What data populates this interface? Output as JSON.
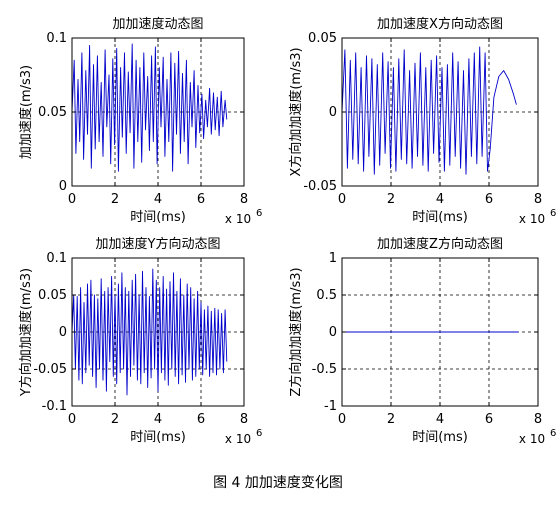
{
  "figure_caption": "图 4  加加速度变化图",
  "chart_data": [
    {
      "type": "line",
      "title": "加加速度动态图",
      "xlabel": "时间(ms)",
      "ylabel": "加加速度(m/s3)",
      "x_multiplier_label": {
        "base": "x 10",
        "exp": "6"
      },
      "xlim": [
        0,
        8
      ],
      "ylim": [
        0,
        0.1
      ],
      "xticks": [
        0,
        2,
        4,
        6,
        8
      ],
      "xtick_labels": [
        "0",
        "2",
        "4",
        "6",
        "8"
      ],
      "yticks": [
        0,
        0.05,
        0.1
      ],
      "ytick_labels": [
        "0",
        "0.05",
        "0.1"
      ],
      "grid": true,
      "color": "#0000cc",
      "series": [
        {
          "x": [
            0.0,
            0.1,
            0.18,
            0.28,
            0.36,
            0.46,
            0.54,
            0.64,
            0.72,
            0.82,
            0.9,
            1.0,
            1.08,
            1.18,
            1.26,
            1.36,
            1.44,
            1.54,
            1.62,
            1.72,
            1.8,
            1.9,
            1.98,
            2.08,
            2.16,
            2.26,
            2.34,
            2.44,
            2.52,
            2.62,
            2.7,
            2.8,
            2.88,
            2.98,
            3.06,
            3.16,
            3.24,
            3.34,
            3.42,
            3.52,
            3.6,
            3.7,
            3.78,
            3.88,
            3.96,
            4.06,
            4.14,
            4.24,
            4.32,
            4.42,
            4.5,
            4.6,
            4.68,
            4.78,
            4.86,
            4.96,
            5.04,
            5.14,
            5.22,
            5.32,
            5.4,
            5.5,
            5.58,
            5.68,
            5.76,
            5.86,
            5.94,
            6.04,
            6.12,
            6.22,
            6.3,
            6.4,
            6.48,
            6.58,
            6.66,
            6.76,
            6.84,
            6.94,
            7.02,
            7.12,
            7.2
          ],
          "y": [
            0.05,
            0.085,
            0.022,
            0.072,
            0.03,
            0.09,
            0.018,
            0.078,
            0.035,
            0.095,
            0.012,
            0.082,
            0.025,
            0.088,
            0.03,
            0.07,
            0.02,
            0.092,
            0.04,
            0.075,
            0.015,
            0.086,
            0.028,
            0.093,
            0.01,
            0.08,
            0.033,
            0.09,
            0.022,
            0.077,
            0.036,
            0.096,
            0.012,
            0.085,
            0.03,
            0.08,
            0.016,
            0.09,
            0.038,
            0.074,
            0.024,
            0.088,
            0.03,
            0.094,
            0.015,
            0.08,
            0.04,
            0.087,
            0.02,
            0.072,
            0.03,
            0.09,
            0.01,
            0.083,
            0.035,
            0.091,
            0.022,
            0.076,
            0.03,
            0.085,
            0.015,
            0.07,
            0.04,
            0.078,
            0.026,
            0.068,
            0.036,
            0.062,
            0.032,
            0.058,
            0.04,
            0.066,
            0.035,
            0.063,
            0.038,
            0.06,
            0.034,
            0.064,
            0.04,
            0.058,
            0.045
          ]
        }
      ]
    },
    {
      "type": "line",
      "title": "加加速度X方向动态图",
      "xlabel": "时间(ms)",
      "ylabel": "X方向加加速度(m/s3)",
      "x_multiplier_label": {
        "base": "x 10",
        "exp": "6"
      },
      "xlim": [
        0,
        8
      ],
      "ylim": [
        -0.05,
        0.05
      ],
      "xticks": [
        0,
        2,
        4,
        6,
        8
      ],
      "xtick_labels": [
        "0",
        "2",
        "4",
        "6",
        "8"
      ],
      "yticks": [
        -0.05,
        0,
        0.05
      ],
      "ytick_labels": [
        "-0.05",
        "0",
        "0.05"
      ],
      "grid": true,
      "color": "#0000cc",
      "series": [
        {
          "x": [
            0.0,
            0.12,
            0.22,
            0.34,
            0.44,
            0.56,
            0.66,
            0.78,
            0.88,
            1.0,
            1.1,
            1.22,
            1.32,
            1.44,
            1.54,
            1.66,
            1.76,
            1.88,
            1.98,
            2.1,
            2.2,
            2.32,
            2.42,
            2.54,
            2.64,
            2.76,
            2.86,
            2.98,
            3.08,
            3.2,
            3.3,
            3.42,
            3.52,
            3.64,
            3.74,
            3.86,
            3.96,
            4.08,
            4.18,
            4.3,
            4.4,
            4.52,
            4.62,
            4.74,
            4.84,
            4.96,
            5.06,
            5.18,
            5.28,
            5.4,
            5.5,
            5.62,
            5.72,
            5.84,
            5.94,
            6.05,
            6.2,
            6.4,
            6.6,
            6.8,
            7.0,
            7.12
          ],
          "y": [
            0.0,
            0.042,
            -0.038,
            0.035,
            -0.032,
            0.04,
            -0.035,
            0.03,
            -0.04,
            0.038,
            -0.03,
            0.036,
            -0.042,
            0.032,
            -0.036,
            0.04,
            -0.028,
            0.034,
            -0.038,
            0.03,
            -0.04,
            0.036,
            -0.032,
            0.042,
            -0.035,
            0.028,
            -0.038,
            0.033,
            -0.03,
            0.04,
            -0.036,
            0.03,
            -0.04,
            0.035,
            -0.028,
            0.038,
            -0.034,
            0.03,
            -0.04,
            0.032,
            -0.036,
            0.04,
            -0.03,
            0.034,
            -0.038,
            0.028,
            -0.042,
            0.036,
            -0.03,
            0.04,
            -0.035,
            0.044,
            -0.03,
            0.04,
            -0.04,
            -0.025,
            0.01,
            0.024,
            0.028,
            0.022,
            0.012,
            0.005
          ]
        }
      ]
    },
    {
      "type": "line",
      "title": "加加速度Y方向动态图",
      "xlabel": "时间(ms)",
      "ylabel": "Y方向加加速度(m/s3)",
      "x_multiplier_label": {
        "base": "x 10",
        "exp": "6"
      },
      "xlim": [
        0,
        8
      ],
      "ylim": [
        -0.1,
        0.1
      ],
      "xticks": [
        0,
        2,
        4,
        6,
        8
      ],
      "xtick_labels": [
        "0",
        "2",
        "4",
        "6",
        "8"
      ],
      "yticks": [
        -0.1,
        -0.05,
        0,
        0.05,
        0.1
      ],
      "ytick_labels": [
        "-0.1",
        "-0.05",
        "0",
        "0.05",
        "0.1"
      ],
      "grid": true,
      "color": "#0000cc",
      "series": [
        {
          "x": [
            0.0,
            0.08,
            0.16,
            0.24,
            0.32,
            0.4,
            0.48,
            0.56,
            0.64,
            0.72,
            0.8,
            0.88,
            0.96,
            1.04,
            1.12,
            1.2,
            1.28,
            1.36,
            1.44,
            1.52,
            1.6,
            1.68,
            1.76,
            1.84,
            1.92,
            2.0,
            2.08,
            2.16,
            2.24,
            2.32,
            2.4,
            2.48,
            2.56,
            2.64,
            2.72,
            2.8,
            2.88,
            2.96,
            3.04,
            3.12,
            3.2,
            3.28,
            3.36,
            3.44,
            3.52,
            3.6,
            3.68,
            3.76,
            3.84,
            3.92,
            4.0,
            4.08,
            4.16,
            4.24,
            4.32,
            4.4,
            4.48,
            4.56,
            4.64,
            4.72,
            4.8,
            4.88,
            4.96,
            5.04,
            5.12,
            5.2,
            5.28,
            5.36,
            5.44,
            5.52,
            5.6,
            5.68,
            5.76,
            5.84,
            5.92,
            6.0,
            6.08,
            6.16,
            6.24,
            6.32,
            6.4,
            6.48,
            6.56,
            6.64,
            6.72,
            6.8,
            6.88,
            6.96,
            7.04,
            7.12,
            7.2
          ],
          "y": [
            0.0,
            0.05,
            -0.05,
            0.048,
            -0.065,
            0.06,
            -0.07,
            0.04,
            -0.055,
            0.065,
            -0.045,
            0.07,
            -0.06,
            0.05,
            -0.075,
            0.045,
            -0.05,
            0.072,
            -0.065,
            0.055,
            -0.08,
            0.06,
            -0.04,
            0.075,
            -0.06,
            0.05,
            -0.07,
            0.065,
            -0.055,
            0.08,
            -0.05,
            0.06,
            -0.085,
            0.055,
            -0.06,
            0.07,
            -0.045,
            0.078,
            -0.065,
            0.05,
            -0.07,
            0.082,
            -0.055,
            0.06,
            -0.075,
            0.048,
            -0.062,
            0.085,
            -0.05,
            0.07,
            -0.08,
            0.06,
            -0.055,
            0.075,
            -0.065,
            0.058,
            -0.072,
            0.068,
            -0.05,
            0.08,
            -0.06,
            0.055,
            -0.07,
            0.072,
            -0.058,
            0.05,
            -0.068,
            0.065,
            -0.05,
            0.06,
            -0.065,
            0.045,
            -0.06,
            0.055,
            -0.05,
            0.04,
            -0.058,
            0.03,
            -0.05,
            0.035,
            -0.06,
            0.028,
            -0.055,
            0.032,
            -0.058,
            0.03,
            -0.05,
            0.025,
            -0.055,
            0.03,
            -0.04
          ]
        }
      ]
    },
    {
      "type": "line",
      "title": "加加速度Z方向动态图",
      "xlabel": "时间(ms)",
      "ylabel": "Z方向加加速度(m/s3)",
      "x_multiplier_label": {
        "base": "x 10",
        "exp": "6"
      },
      "xlim": [
        0,
        8
      ],
      "ylim": [
        -1,
        1
      ],
      "xticks": [
        0,
        2,
        4,
        6,
        8
      ],
      "xtick_labels": [
        "0",
        "2",
        "4",
        "6",
        "8"
      ],
      "yticks": [
        -1,
        -0.5,
        0,
        0.5,
        1
      ],
      "ytick_labels": [
        "-1",
        "-0.5",
        "0",
        "0.5",
        "1"
      ],
      "grid": true,
      "color": "#0000cc",
      "series": [
        {
          "x": [
            0,
            7.2
          ],
          "y": [
            0,
            0
          ]
        }
      ]
    }
  ]
}
